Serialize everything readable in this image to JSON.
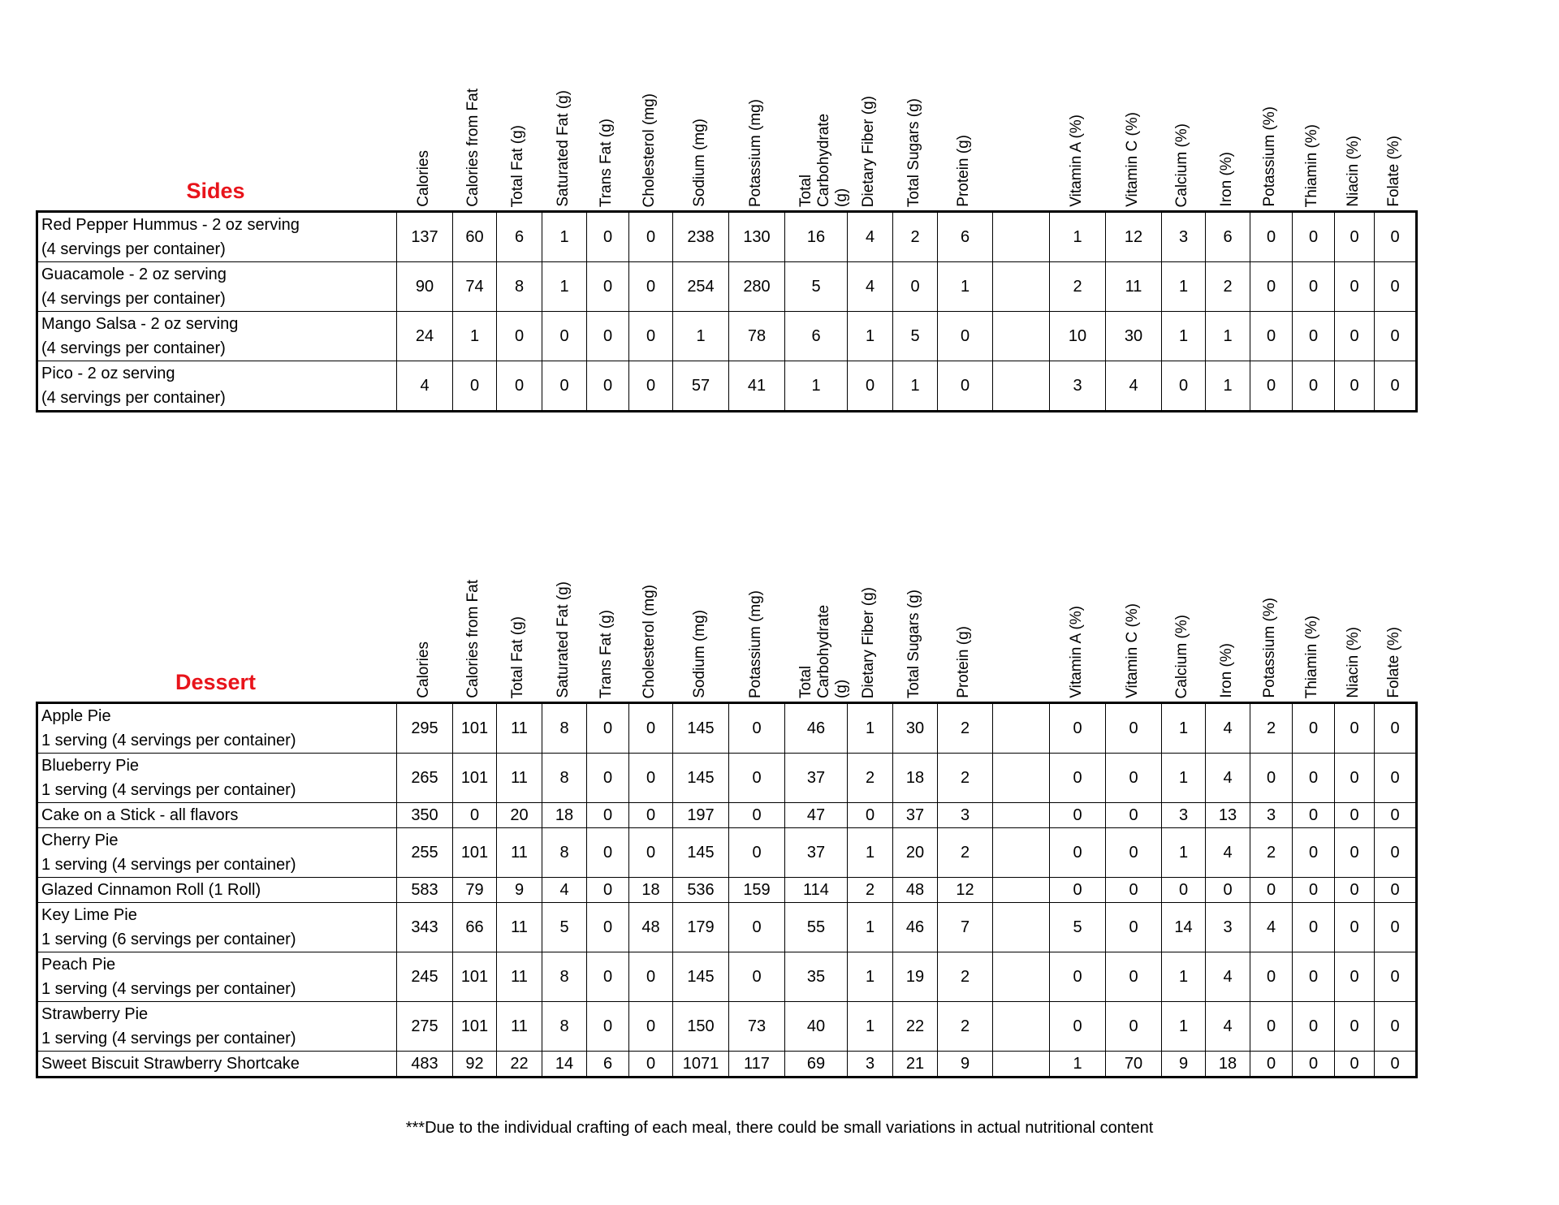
{
  "columns": [
    "Calories",
    "Calories from Fat",
    "Total Fat (g)",
    "Saturated Fat (g)",
    "Trans Fat (g)",
    "Cholesterol (mg)",
    "Sodium (mg)",
    "Potassium (mg)",
    "Total Carbohydrate (g)",
    "Dietary Fiber (g)",
    "Total Sugars (g)",
    "Protein (g)",
    "",
    "Vitamin A (%)",
    "Vitamin C (%)",
    "Calcium (%)",
    "Iron (%)",
    "Potassium (%)",
    "Thiamin (%)",
    "Niacin (%)",
    "Folate (%)"
  ],
  "sections": [
    {
      "title": "Sides",
      "rows": [
        {
          "name": [
            "Red Pepper Hummus - 2 oz serving",
            "(4 servings per container)"
          ],
          "values": [
            "137",
            "60",
            "6",
            "1",
            "0",
            "0",
            "238",
            "130",
            "16",
            "4",
            "2",
            "6",
            "",
            "1",
            "12",
            "3",
            "6",
            "0",
            "0",
            "0",
            "0"
          ]
        },
        {
          "name": [
            "Guacamole - 2 oz serving",
            "(4 servings per container)"
          ],
          "values": [
            "90",
            "74",
            "8",
            "1",
            "0",
            "0",
            "254",
            "280",
            "5",
            "4",
            "0",
            "1",
            "",
            "2",
            "11",
            "1",
            "2",
            "0",
            "0",
            "0",
            "0"
          ]
        },
        {
          "name": [
            "Mango Salsa - 2 oz serving",
            "(4 servings per container)"
          ],
          "values": [
            "24",
            "1",
            "0",
            "0",
            "0",
            "0",
            "1",
            "78",
            "6",
            "1",
            "5",
            "0",
            "",
            "10",
            "30",
            "1",
            "1",
            "0",
            "0",
            "0",
            "0"
          ]
        },
        {
          "name": [
            "Pico - 2 oz serving",
            "(4 servings per container)"
          ],
          "values": [
            "4",
            "0",
            "0",
            "0",
            "0",
            "0",
            "57",
            "41",
            "1",
            "0",
            "1",
            "0",
            "",
            "3",
            "4",
            "0",
            "1",
            "0",
            "0",
            "0",
            "0"
          ]
        }
      ]
    },
    {
      "title": "Dessert",
      "rows": [
        {
          "name": [
            "Apple Pie",
            "1 serving (4 servings per container)"
          ],
          "values": [
            "295",
            "101",
            "11",
            "8",
            "0",
            "0",
            "145",
            "0",
            "46",
            "1",
            "30",
            "2",
            "",
            "0",
            "0",
            "1",
            "4",
            "2",
            "0",
            "0",
            "0"
          ]
        },
        {
          "name": [
            "Blueberry Pie",
            "1 serving (4 servings per container)"
          ],
          "values": [
            "265",
            "101",
            "11",
            "8",
            "0",
            "0",
            "145",
            "0",
            "37",
            "2",
            "18",
            "2",
            "",
            "0",
            "0",
            "1",
            "4",
            "0",
            "0",
            "0",
            "0"
          ]
        },
        {
          "name": [
            "Cake on a Stick - all flavors"
          ],
          "values": [
            "350",
            "0",
            "20",
            "18",
            "0",
            "0",
            "197",
            "0",
            "47",
            "0",
            "37",
            "3",
            "",
            "0",
            "0",
            "3",
            "13",
            "3",
            "0",
            "0",
            "0"
          ]
        },
        {
          "name": [
            "Cherry Pie",
            "1 serving (4 servings per container)"
          ],
          "values": [
            "255",
            "101",
            "11",
            "8",
            "0",
            "0",
            "145",
            "0",
            "37",
            "1",
            "20",
            "2",
            "",
            "0",
            "0",
            "1",
            "4",
            "2",
            "0",
            "0",
            "0"
          ]
        },
        {
          "name": [
            "Glazed Cinnamon Roll   (1 Roll)"
          ],
          "values": [
            "583",
            "79",
            "9",
            "4",
            "0",
            "18",
            "536",
            "159",
            "114",
            "2",
            "48",
            "12",
            "",
            "0",
            "0",
            "0",
            "0",
            "0",
            "0",
            "0",
            "0"
          ]
        },
        {
          "name": [
            "Key Lime Pie",
            "1 serving (6 servings per container)"
          ],
          "values": [
            "343",
            "66",
            "11",
            "5",
            "0",
            "48",
            "179",
            "0",
            "55",
            "1",
            "46",
            "7",
            "",
            "5",
            "0",
            "14",
            "3",
            "4",
            "0",
            "0",
            "0"
          ]
        },
        {
          "name": [
            "Peach Pie",
            "1 serving (4 servings per container)"
          ],
          "values": [
            "245",
            "101",
            "11",
            "8",
            "0",
            "0",
            "145",
            "0",
            "35",
            "1",
            "19",
            "2",
            "",
            "0",
            "0",
            "1",
            "4",
            "0",
            "0",
            "0",
            "0"
          ]
        },
        {
          "name": [
            "Strawberry Pie",
            "1 serving (4 servings per container)"
          ],
          "values": [
            "275",
            "101",
            "11",
            "8",
            "0",
            "0",
            "150",
            "73",
            "40",
            "1",
            "22",
            "2",
            "",
            "0",
            "0",
            "1",
            "4",
            "0",
            "0",
            "0",
            "0"
          ]
        },
        {
          "name": [
            "Sweet Biscuit Strawberry Shortcake"
          ],
          "values": [
            "483",
            "92",
            "22",
            "14",
            "6",
            "0",
            "1071",
            "117",
            "69",
            "3",
            "21",
            "9",
            "",
            "1",
            "70",
            "9",
            "18",
            "0",
            "0",
            "0",
            "0"
          ]
        }
      ]
    }
  ],
  "footer": "***Due to the individual crafting of each meal, there could be small variations in actual nutritional content",
  "colors": {
    "section_title": "#e8141b"
  }
}
